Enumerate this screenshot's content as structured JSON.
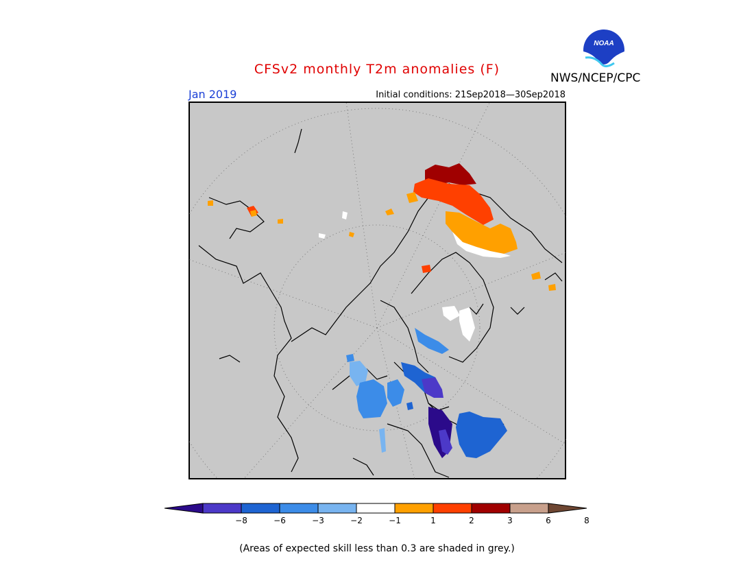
{
  "header": {
    "title": "CFSv2 monthly T2m anomalies (F)",
    "month": "Jan 2019",
    "initial_conditions": "Initial conditions: 21Sep2018—30Sep2018",
    "agency": "NWS/NCEP/CPC",
    "logo_text": "NOAA"
  },
  "map": {
    "background_color": "#c8c8c8",
    "projection": "polar stereographic (north)"
  },
  "legend": {
    "ticks": [
      "−8",
      "−6",
      "−3",
      "−2",
      "−1",
      "1",
      "2",
      "3",
      "6",
      "8"
    ],
    "colors": [
      "#2b0a8a",
      "#4c39c8",
      "#1e64d2",
      "#3c8ce8",
      "#78b4f0",
      "#ffffff",
      "#ffa000",
      "#ff4000",
      "#a00000",
      "#c8a08c",
      "#6e4632"
    ],
    "footnote": "(Areas of expected skill less than 0.3 are shaded in grey.)"
  }
}
